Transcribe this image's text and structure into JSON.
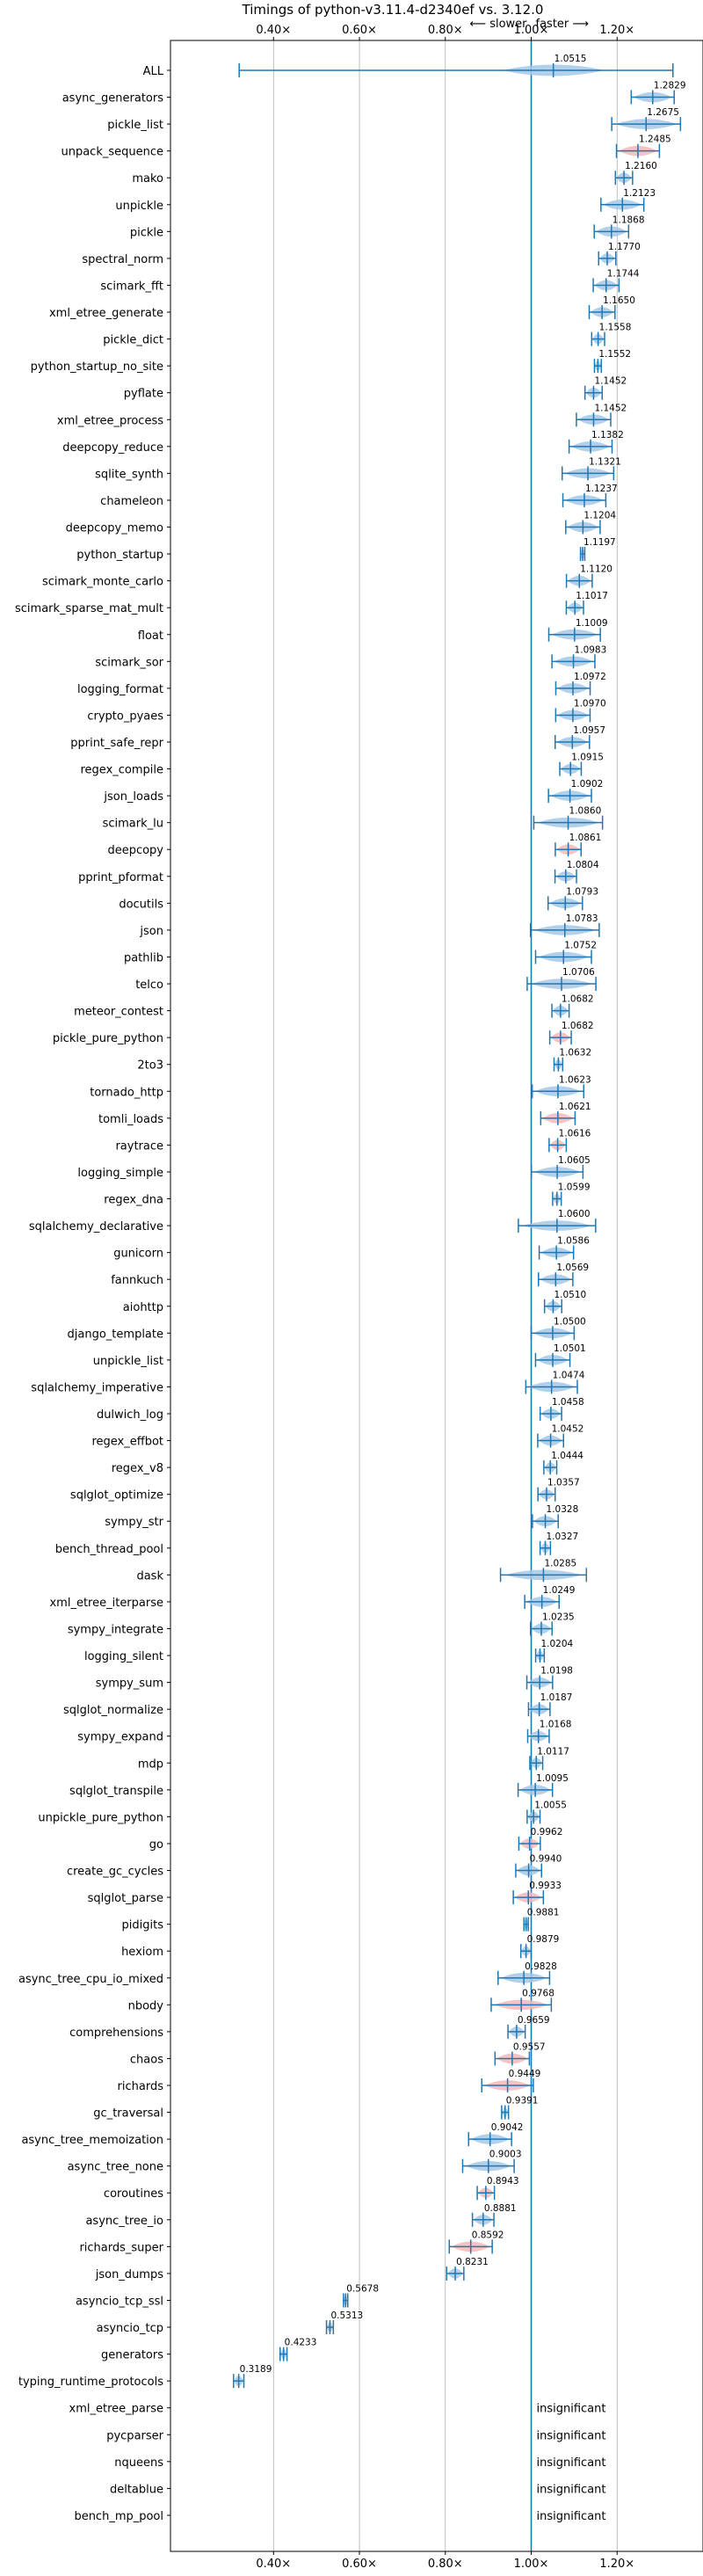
{
  "chart_data": {
    "type": "violin",
    "title": "Timings of python-v3.11.4-d2340ef vs. 3.12.0",
    "direction_labels": {
      "slower": "⟵ slower",
      "faster": "faster ⟶"
    },
    "xlim": [
      0.16,
      1.4
    ],
    "x_ticks": [
      0.4,
      0.6,
      0.8,
      1.0,
      1.2
    ],
    "x_tick_labels": [
      "0.40×",
      "0.60×",
      "0.80×",
      "1.00×",
      "1.20×"
    ],
    "reference_line": 1.0,
    "grid": true,
    "colors": {
      "faster": "#a6c8e6",
      "slower": "#f5b7b9",
      "marker": "#1f77b4"
    },
    "insignificant_label": "insignificant",
    "benchmarks": [
      {
        "name": "ALL",
        "value": 1.0515,
        "spread": 0.35,
        "status": "faster",
        "kind": "all"
      },
      {
        "name": "async_generators",
        "value": 1.2829,
        "spread": 0.05,
        "status": "faster"
      },
      {
        "name": "pickle_list",
        "value": 1.2675,
        "spread": 0.08,
        "status": "faster"
      },
      {
        "name": "unpack_sequence",
        "value": 1.2485,
        "spread": 0.05,
        "status": "slower"
      },
      {
        "name": "mako",
        "value": 1.216,
        "spread": 0.02,
        "status": "faster"
      },
      {
        "name": "unpickle",
        "value": 1.2123,
        "spread": 0.05,
        "status": "faster"
      },
      {
        "name": "pickle",
        "value": 1.1868,
        "spread": 0.04,
        "status": "faster"
      },
      {
        "name": "spectral_norm",
        "value": 1.177,
        "spread": 0.02,
        "status": "faster"
      },
      {
        "name": "scimark_fft",
        "value": 1.1744,
        "spread": 0.03,
        "status": "faster"
      },
      {
        "name": "xml_etree_generate",
        "value": 1.165,
        "spread": 0.03,
        "status": "faster"
      },
      {
        "name": "pickle_dict",
        "value": 1.1558,
        "spread": 0.015,
        "status": "faster"
      },
      {
        "name": "python_startup_no_site",
        "value": 1.1552,
        "spread": 0.008,
        "status": "faster"
      },
      {
        "name": "pyflate",
        "value": 1.1452,
        "spread": 0.02,
        "status": "faster"
      },
      {
        "name": "xml_etree_process",
        "value": 1.1452,
        "spread": 0.04,
        "status": "faster"
      },
      {
        "name": "deepcopy_reduce",
        "value": 1.1382,
        "spread": 0.05,
        "status": "faster"
      },
      {
        "name": "sqlite_synth",
        "value": 1.1321,
        "spread": 0.06,
        "status": "faster"
      },
      {
        "name": "chameleon",
        "value": 1.1237,
        "spread": 0.05,
        "status": "faster"
      },
      {
        "name": "deepcopy_memo",
        "value": 1.1204,
        "spread": 0.04,
        "status": "faster"
      },
      {
        "name": "python_startup",
        "value": 1.1197,
        "spread": 0.005,
        "status": "faster"
      },
      {
        "name": "scimark_monte_carlo",
        "value": 1.112,
        "spread": 0.03,
        "status": "faster"
      },
      {
        "name": "scimark_sparse_mat_mult",
        "value": 1.1017,
        "spread": 0.02,
        "status": "faster"
      },
      {
        "name": "float",
        "value": 1.1009,
        "spread": 0.06,
        "status": "faster"
      },
      {
        "name": "scimark_sor",
        "value": 1.0983,
        "spread": 0.05,
        "status": "faster"
      },
      {
        "name": "logging_format",
        "value": 1.0972,
        "spread": 0.04,
        "status": "faster"
      },
      {
        "name": "crypto_pyaes",
        "value": 1.097,
        "spread": 0.04,
        "status": "faster"
      },
      {
        "name": "pprint_safe_repr",
        "value": 1.0957,
        "spread": 0.04,
        "status": "faster"
      },
      {
        "name": "regex_compile",
        "value": 1.0915,
        "spread": 0.025,
        "status": "faster"
      },
      {
        "name": "json_loads",
        "value": 1.0902,
        "spread": 0.05,
        "status": "faster"
      },
      {
        "name": "scimark_lu",
        "value": 1.086,
        "spread": 0.08,
        "status": "faster"
      },
      {
        "name": "deepcopy",
        "value": 1.0861,
        "spread": 0.03,
        "status": "slower"
      },
      {
        "name": "pprint_pformat",
        "value": 1.0804,
        "spread": 0.025,
        "status": "faster"
      },
      {
        "name": "docutils",
        "value": 1.0793,
        "spread": 0.04,
        "status": "faster"
      },
      {
        "name": "json",
        "value": 1.0783,
        "spread": 0.08,
        "status": "faster"
      },
      {
        "name": "pathlib",
        "value": 1.0752,
        "spread": 0.065,
        "status": "faster"
      },
      {
        "name": "telco",
        "value": 1.0706,
        "spread": 0.08,
        "status": "faster"
      },
      {
        "name": "meteor_contest",
        "value": 1.0682,
        "spread": 0.02,
        "status": "faster"
      },
      {
        "name": "pickle_pure_python",
        "value": 1.0682,
        "spread": 0.025,
        "status": "slower"
      },
      {
        "name": "2to3",
        "value": 1.0632,
        "spread": 0.01,
        "status": "faster"
      },
      {
        "name": "tornado_http",
        "value": 1.0623,
        "spread": 0.06,
        "status": "faster"
      },
      {
        "name": "tomli_loads",
        "value": 1.0621,
        "spread": 0.04,
        "status": "slower"
      },
      {
        "name": "raytrace",
        "value": 1.0616,
        "spread": 0.02,
        "status": "slower"
      },
      {
        "name": "logging_simple",
        "value": 1.0605,
        "spread": 0.06,
        "status": "faster"
      },
      {
        "name": "regex_dna",
        "value": 1.0599,
        "spread": 0.01,
        "status": "faster"
      },
      {
        "name": "sqlalchemy_declarative",
        "value": 1.06,
        "spread": 0.09,
        "status": "faster"
      },
      {
        "name": "gunicorn",
        "value": 1.0586,
        "spread": 0.04,
        "status": "faster"
      },
      {
        "name": "fannkuch",
        "value": 1.0569,
        "spread": 0.04,
        "status": "faster"
      },
      {
        "name": "aiohttp",
        "value": 1.051,
        "spread": 0.02,
        "status": "faster"
      },
      {
        "name": "django_template",
        "value": 1.05,
        "spread": 0.05,
        "status": "faster"
      },
      {
        "name": "unpickle_list",
        "value": 1.0501,
        "spread": 0.04,
        "status": "faster"
      },
      {
        "name": "sqlalchemy_imperative",
        "value": 1.0474,
        "spread": 0.06,
        "status": "faster"
      },
      {
        "name": "dulwich_log",
        "value": 1.0458,
        "spread": 0.025,
        "status": "faster"
      },
      {
        "name": "regex_effbot",
        "value": 1.0452,
        "spread": 0.03,
        "status": "faster"
      },
      {
        "name": "regex_v8",
        "value": 1.0444,
        "spread": 0.015,
        "status": "faster"
      },
      {
        "name": "sqlglot_optimize",
        "value": 1.0357,
        "spread": 0.02,
        "status": "faster"
      },
      {
        "name": "sympy_str",
        "value": 1.0328,
        "spread": 0.03,
        "status": "faster"
      },
      {
        "name": "bench_thread_pool",
        "value": 1.0327,
        "spread": 0.012,
        "status": "faster"
      },
      {
        "name": "dask",
        "value": 1.0285,
        "spread": 0.1,
        "status": "faster"
      },
      {
        "name": "xml_etree_iterparse",
        "value": 1.0249,
        "spread": 0.04,
        "status": "faster"
      },
      {
        "name": "sympy_integrate",
        "value": 1.0235,
        "spread": 0.025,
        "status": "faster"
      },
      {
        "name": "logging_silent",
        "value": 1.0204,
        "spread": 0.01,
        "status": "faster"
      },
      {
        "name": "sympy_sum",
        "value": 1.0198,
        "spread": 0.03,
        "status": "faster"
      },
      {
        "name": "sqlglot_normalize",
        "value": 1.0187,
        "spread": 0.025,
        "status": "faster"
      },
      {
        "name": "sympy_expand",
        "value": 1.0168,
        "spread": 0.025,
        "status": "faster"
      },
      {
        "name": "mdp",
        "value": 1.0117,
        "spread": 0.015,
        "status": "faster"
      },
      {
        "name": "sqlglot_transpile",
        "value": 1.0095,
        "spread": 0.04,
        "status": "faster"
      },
      {
        "name": "unpickle_pure_python",
        "value": 1.0055,
        "spread": 0.015,
        "status": "faster"
      },
      {
        "name": "go",
        "value": 0.9962,
        "spread": 0.025,
        "status": "slower"
      },
      {
        "name": "create_gc_cycles",
        "value": 0.994,
        "spread": 0.03,
        "status": "faster"
      },
      {
        "name": "sqlglot_parse",
        "value": 0.9933,
        "spread": 0.035,
        "status": "slower"
      },
      {
        "name": "pidigits",
        "value": 0.9881,
        "spread": 0.005,
        "status": "faster"
      },
      {
        "name": "hexiom",
        "value": 0.9879,
        "spread": 0.012,
        "status": "faster"
      },
      {
        "name": "async_tree_cpu_io_mixed",
        "value": 0.9828,
        "spread": 0.06,
        "status": "faster"
      },
      {
        "name": "nbody",
        "value": 0.9768,
        "spread": 0.07,
        "status": "slower"
      },
      {
        "name": "comprehensions",
        "value": 0.9659,
        "spread": 0.02,
        "status": "faster"
      },
      {
        "name": "chaos",
        "value": 0.9557,
        "spread": 0.04,
        "status": "slower"
      },
      {
        "name": "richards",
        "value": 0.9449,
        "spread": 0.06,
        "status": "slower"
      },
      {
        "name": "gc_traversal",
        "value": 0.9391,
        "spread": 0.008,
        "status": "faster"
      },
      {
        "name": "async_tree_memoization",
        "value": 0.9042,
        "spread": 0.05,
        "status": "faster"
      },
      {
        "name": "async_tree_none",
        "value": 0.9003,
        "spread": 0.06,
        "status": "faster"
      },
      {
        "name": "coroutines",
        "value": 0.8943,
        "spread": 0.02,
        "status": "slower"
      },
      {
        "name": "async_tree_io",
        "value": 0.8881,
        "spread": 0.025,
        "status": "faster"
      },
      {
        "name": "richards_super",
        "value": 0.8592,
        "spread": 0.05,
        "status": "slower"
      },
      {
        "name": "json_dumps",
        "value": 0.8231,
        "spread": 0.02,
        "status": "faster"
      },
      {
        "name": "asyncio_tcp_ssl",
        "value": 0.5678,
        "spread": 0.005,
        "status": "faster"
      },
      {
        "name": "asyncio_tcp",
        "value": 0.5313,
        "spread": 0.008,
        "status": "faster"
      },
      {
        "name": "generators",
        "value": 0.4233,
        "spread": 0.008,
        "status": "faster"
      },
      {
        "name": "typing_runtime_protocols",
        "value": 0.3189,
        "spread": 0.012,
        "status": "faster"
      },
      {
        "name": "xml_etree_parse",
        "value": null,
        "status": "insignificant"
      },
      {
        "name": "pycparser",
        "value": null,
        "status": "insignificant"
      },
      {
        "name": "nqueens",
        "value": null,
        "status": "insignificant"
      },
      {
        "name": "deltablue",
        "value": null,
        "status": "insignificant"
      },
      {
        "name": "bench_mp_pool",
        "value": null,
        "status": "insignificant"
      }
    ]
  }
}
